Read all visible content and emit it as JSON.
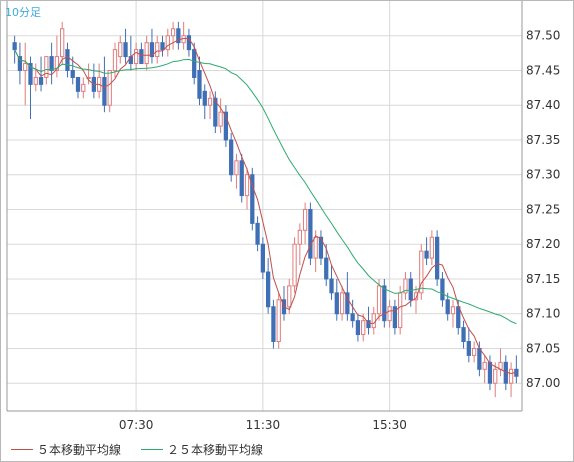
{
  "period_label": "10分足",
  "chart_data": {
    "type": "candlestick",
    "ylim": [
      86.96,
      87.55
    ],
    "yticks": [
      87.0,
      87.05,
      87.1,
      87.15,
      87.2,
      87.25,
      87.3,
      87.35,
      87.4,
      87.45,
      87.5
    ],
    "ytick_labels": [
      "87.00",
      "87.05",
      "87.10",
      "87.15",
      "87.20",
      "87.25",
      "87.30",
      "87.35",
      "87.40",
      "87.45",
      "87.50"
    ],
    "xticks": [
      {
        "index": 23,
        "label": "07:30"
      },
      {
        "index": 47,
        "label": "11:30"
      },
      {
        "index": 71,
        "label": "15:30"
      }
    ],
    "grid": true,
    "candles": [
      [
        87.49,
        87.5,
        87.46,
        87.48
      ],
      [
        87.47,
        87.49,
        87.43,
        87.45
      ],
      [
        87.45,
        87.49,
        87.4,
        87.46
      ],
      [
        87.46,
        87.47,
        87.38,
        87.43
      ],
      [
        87.43,
        87.46,
        87.42,
        87.44
      ],
      [
        87.44,
        87.47,
        87.42,
        87.43
      ],
      [
        87.44,
        87.47,
        87.43,
        87.47
      ],
      [
        87.47,
        87.49,
        87.43,
        87.45
      ],
      [
        87.45,
        87.5,
        87.44,
        87.47
      ],
      [
        87.47,
        87.52,
        87.46,
        87.51
      ],
      [
        87.48,
        87.49,
        87.44,
        87.45
      ],
      [
        87.45,
        87.47,
        87.43,
        87.44
      ],
      [
        87.44,
        87.44,
        87.41,
        87.42
      ],
      [
        87.42,
        87.44,
        87.41,
        87.43
      ],
      [
        87.44,
        87.46,
        87.43,
        87.44
      ],
      [
        87.44,
        87.46,
        87.41,
        87.42
      ],
      [
        87.42,
        87.46,
        87.41,
        87.44
      ],
      [
        87.44,
        87.47,
        87.39,
        87.4
      ],
      [
        87.4,
        87.45,
        87.39,
        87.45
      ],
      [
        87.45,
        87.49,
        87.44,
        87.48
      ],
      [
        87.47,
        87.5,
        87.46,
        87.49
      ],
      [
        87.49,
        87.51,
        87.46,
        87.47
      ],
      [
        87.47,
        87.5,
        87.45,
        87.46
      ],
      [
        87.46,
        87.49,
        87.45,
        87.48
      ],
      [
        87.48,
        87.49,
        87.46,
        87.46
      ],
      [
        87.46,
        87.5,
        87.45,
        87.49
      ],
      [
        87.49,
        87.51,
        87.46,
        87.47
      ],
      [
        87.47,
        87.5,
        87.46,
        87.49
      ],
      [
        87.49,
        87.5,
        87.47,
        87.48
      ],
      [
        87.48,
        87.51,
        87.47,
        87.5
      ],
      [
        87.5,
        87.52,
        87.48,
        87.51
      ],
      [
        87.51,
        87.52,
        87.48,
        87.49
      ],
      [
        87.49,
        87.52,
        87.48,
        87.5
      ],
      [
        87.5,
        87.51,
        87.47,
        87.48
      ],
      [
        87.48,
        87.49,
        87.43,
        87.44
      ],
      [
        87.45,
        87.47,
        87.4,
        87.41
      ],
      [
        87.42,
        87.43,
        87.38,
        87.4
      ],
      [
        87.4,
        87.42,
        87.38,
        87.41
      ],
      [
        87.41,
        87.42,
        87.36,
        87.37
      ],
      [
        87.37,
        87.41,
        87.36,
        87.39
      ],
      [
        87.39,
        87.4,
        87.34,
        87.35
      ],
      [
        87.35,
        87.36,
        87.29,
        87.3
      ],
      [
        87.3,
        87.33,
        87.28,
        87.32
      ],
      [
        87.32,
        87.33,
        87.26,
        87.27
      ],
      [
        87.27,
        87.31,
        87.25,
        87.3
      ],
      [
        87.3,
        87.31,
        87.22,
        87.23
      ],
      [
        87.23,
        87.24,
        87.19,
        87.2
      ],
      [
        87.2,
        87.21,
        87.15,
        87.16
      ],
      [
        87.16,
        87.18,
        87.1,
        87.11
      ],
      [
        87.11,
        87.12,
        87.05,
        87.06
      ],
      [
        87.06,
        87.13,
        87.05,
        87.12
      ],
      [
        87.12,
        87.14,
        87.09,
        87.1
      ],
      [
        87.11,
        87.15,
        87.1,
        87.14
      ],
      [
        87.14,
        87.21,
        87.13,
        87.2
      ],
      [
        87.2,
        87.23,
        87.17,
        87.22
      ],
      [
        87.22,
        87.26,
        87.2,
        87.25
      ],
      [
        87.25,
        87.26,
        87.17,
        87.18
      ],
      [
        87.18,
        87.22,
        87.16,
        87.21
      ],
      [
        87.21,
        87.22,
        87.17,
        87.18
      ],
      [
        87.18,
        87.2,
        87.14,
        87.15
      ],
      [
        87.15,
        87.17,
        87.12,
        87.13
      ],
      [
        87.13,
        87.15,
        87.09,
        87.1
      ],
      [
        87.1,
        87.14,
        87.09,
        87.13
      ],
      [
        87.13,
        87.16,
        87.09,
        87.1
      ],
      [
        87.1,
        87.12,
        87.08,
        87.09
      ],
      [
        87.09,
        87.1,
        87.06,
        87.07
      ],
      [
        87.07,
        87.1,
        87.06,
        87.09
      ],
      [
        87.09,
        87.11,
        87.07,
        87.08
      ],
      [
        87.08,
        87.11,
        87.07,
        87.1
      ],
      [
        87.1,
        87.15,
        87.09,
        87.14
      ],
      [
        87.14,
        87.15,
        87.08,
        87.09
      ],
      [
        87.09,
        87.12,
        87.08,
        87.11
      ],
      [
        87.11,
        87.12,
        87.07,
        87.08
      ],
      [
        87.08,
        87.14,
        87.07,
        87.13
      ],
      [
        87.13,
        87.16,
        87.12,
        87.15
      ],
      [
        87.15,
        87.16,
        87.11,
        87.12
      ],
      [
        87.12,
        87.14,
        87.1,
        87.13
      ],
      [
        87.13,
        87.2,
        87.12,
        87.19
      ],
      [
        87.19,
        87.21,
        87.17,
        87.18
      ],
      [
        87.18,
        87.22,
        87.17,
        87.21
      ],
      [
        87.21,
        87.22,
        87.14,
        87.15
      ],
      [
        87.15,
        87.16,
        87.11,
        87.12
      ],
      [
        87.12,
        87.13,
        87.09,
        87.1
      ],
      [
        87.1,
        87.12,
        87.08,
        87.11
      ],
      [
        87.11,
        87.12,
        87.07,
        87.08
      ],
      [
        87.08,
        87.09,
        87.05,
        87.06
      ],
      [
        87.06,
        87.08,
        87.03,
        87.04
      ],
      [
        87.04,
        87.06,
        87.03,
        87.05
      ],
      [
        87.05,
        87.06,
        87.01,
        87.02
      ],
      [
        87.02,
        87.04,
        87.0,
        87.03
      ],
      [
        87.03,
        87.04,
        86.99,
        87.0
      ],
      [
        87.0,
        87.03,
        86.98,
        87.02
      ],
      [
        87.02,
        87.05,
        87.01,
        87.03
      ],
      [
        87.03,
        87.04,
        86.99,
        87.0
      ],
      [
        87.0,
        87.03,
        86.98,
        87.02
      ],
      [
        87.02,
        87.04,
        87.0,
        87.01
      ]
    ],
    "series": [
      {
        "name": "５本移動平均線",
        "period": 5,
        "color": "#c0504d"
      },
      {
        "name": "２５本移動平均線",
        "period": 25,
        "color": "#2eaa6e"
      }
    ],
    "colors": {
      "up": "#e07c7c",
      "down": "#3f6fb5",
      "grid": "#d9d9d9",
      "axis_text": "#333333"
    }
  }
}
